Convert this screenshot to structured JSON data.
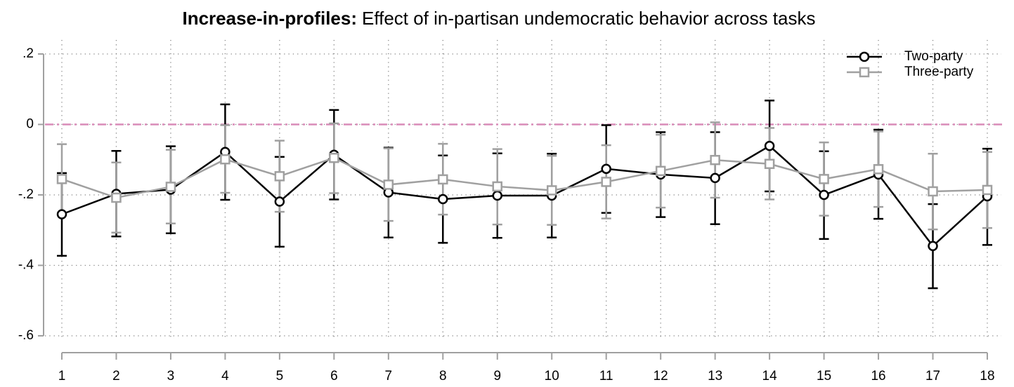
{
  "chart_data": {
    "type": "line",
    "title_prefix": "Increase-in-profiles:",
    "title": "Effect of in-partisan undemocratic behavior across tasks",
    "x": [
      1,
      2,
      3,
      4,
      5,
      6,
      7,
      8,
      9,
      10,
      11,
      12,
      13,
      14,
      15,
      16,
      17,
      18
    ],
    "xlim": [
      1,
      18
    ],
    "xticks": [
      1,
      2,
      3,
      4,
      5,
      6,
      7,
      8,
      9,
      10,
      11,
      12,
      13,
      14,
      15,
      16,
      17,
      18
    ],
    "ylim": [
      -0.6,
      0.2
    ],
    "yticks": [
      {
        "value": 0.2,
        "label": ".2"
      },
      0,
      {
        "value": -0.2,
        "label": "-.2"
      },
      {
        "value": -0.4,
        "label": "-.4"
      },
      {
        "value": -0.6,
        "label": "-.6"
      }
    ],
    "grid": true,
    "reference_line": {
      "value": 0,
      "color": "#d98cb8"
    },
    "legend": "top-right",
    "series": [
      {
        "name": "Two-party",
        "color": "#000000",
        "marker": "circle",
        "values": [
          -0.255,
          -0.197,
          -0.185,
          -0.078,
          -0.219,
          -0.086,
          -0.193,
          -0.212,
          -0.202,
          -0.202,
          -0.126,
          -0.142,
          -0.152,
          -0.061,
          -0.2,
          -0.142,
          -0.345,
          -0.204
        ],
        "lower": [
          -0.373,
          -0.318,
          -0.309,
          -0.214,
          -0.347,
          -0.213,
          -0.321,
          -0.336,
          -0.322,
          -0.321,
          -0.251,
          -0.263,
          -0.283,
          -0.19,
          -0.325,
          -0.268,
          -0.465,
          -0.342
        ],
        "upper": [
          -0.138,
          -0.075,
          -0.062,
          0.057,
          -0.092,
          0.041,
          -0.066,
          -0.088,
          -0.082,
          -0.083,
          -0.002,
          -0.022,
          -0.022,
          0.068,
          -0.076,
          -0.015,
          -0.226,
          -0.069
        ]
      },
      {
        "name": "Three-party",
        "color": "#a0a0a0",
        "marker": "square",
        "values": [
          -0.155,
          -0.208,
          -0.177,
          -0.099,
          -0.147,
          -0.095,
          -0.171,
          -0.156,
          -0.176,
          -0.187,
          -0.163,
          -0.132,
          -0.101,
          -0.112,
          -0.155,
          -0.127,
          -0.19,
          -0.186
        ],
        "lower": [
          -0.255,
          -0.307,
          -0.281,
          -0.194,
          -0.248,
          -0.195,
          -0.274,
          -0.256,
          -0.284,
          -0.285,
          -0.267,
          -0.236,
          -0.208,
          -0.213,
          -0.259,
          -0.234,
          -0.298,
          -0.294
        ],
        "upper": [
          -0.056,
          -0.108,
          -0.072,
          -0.002,
          -0.046,
          0.003,
          -0.068,
          -0.055,
          -0.07,
          -0.089,
          -0.059,
          -0.029,
          0.006,
          -0.01,
          -0.051,
          -0.02,
          -0.083,
          -0.078
        ]
      }
    ]
  }
}
